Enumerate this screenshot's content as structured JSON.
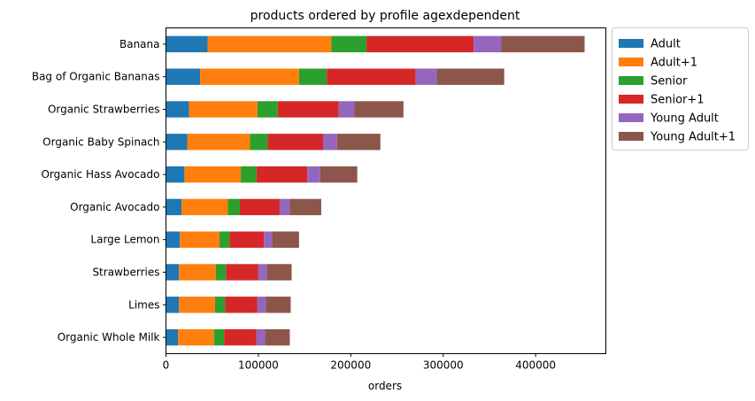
{
  "chart_data": {
    "type": "bar",
    "orientation": "horizontal",
    "stacked": true,
    "title": "products ordered by profile agexdependent",
    "xlabel": "orders",
    "ylabel": "",
    "xlim": [
      0,
      476000
    ],
    "xticks": [
      0,
      100000,
      200000,
      300000,
      400000
    ],
    "xtick_labels": [
      "0",
      "100000",
      "200000",
      "300000",
      "400000"
    ],
    "grid": false,
    "legend_position": "outside-upper-right",
    "categories": [
      "Banana",
      "Bag of Organic Bananas",
      "Organic Strawberries",
      "Organic Baby Spinach",
      "Organic Hass Avocado",
      "Organic Avocado",
      "Large Lemon",
      "Strawberries",
      "Limes",
      "Organic Whole Milk"
    ],
    "series": [
      {
        "name": "Adult",
        "color": "#1f77b4",
        "values": [
          45000,
          37000,
          25000,
          23000,
          20000,
          17000,
          15000,
          14000,
          14000,
          13000
        ]
      },
      {
        "name": "Adult+1",
        "color": "#ff7f0e",
        "values": [
          134000,
          107000,
          74000,
          68000,
          61000,
          50000,
          43000,
          40000,
          39000,
          39000
        ]
      },
      {
        "name": "Senior",
        "color": "#2ca02c",
        "values": [
          38000,
          30000,
          22000,
          19000,
          17000,
          13000,
          11000,
          11000,
          11000,
          11000
        ]
      },
      {
        "name": "Senior+1",
        "color": "#d62728",
        "values": [
          116000,
          96000,
          66000,
          60000,
          55000,
          43000,
          37000,
          35000,
          35000,
          35000
        ]
      },
      {
        "name": "Young Adult",
        "color": "#9467bd",
        "values": [
          30000,
          23000,
          17000,
          15000,
          14000,
          11000,
          9000,
          9000,
          9000,
          9000
        ]
      },
      {
        "name": "Young Adult+1",
        "color": "#8c564b",
        "values": [
          90000,
          73000,
          53000,
          47000,
          40000,
          34000,
          29000,
          27000,
          27000,
          27000
        ]
      }
    ]
  }
}
